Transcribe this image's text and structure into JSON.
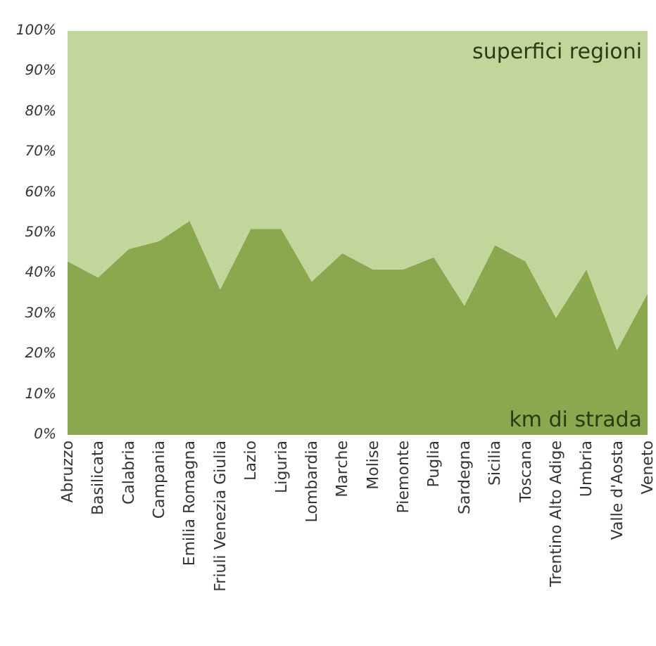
{
  "chart_data": {
    "type": "area",
    "stacked": true,
    "categories": [
      "Abruzzo",
      "Basilicata",
      "Calabria",
      "Campania",
      "Emilia Romagna",
      "Friuli Venezia Giulia",
      "Lazio",
      "Liguria",
      "Lombardia",
      "Marche",
      "Molise",
      "Piemonte",
      "Puglia",
      "Sardegna",
      "Sicilia",
      "Toscana",
      "Trentino Alto Adige",
      "Umbria",
      "Valle d'Aosta",
      "Veneto"
    ],
    "series": [
      {
        "name": "km di strada",
        "color": "#8aa84e",
        "values": [
          43,
          39,
          46,
          48,
          53,
          36,
          51,
          51,
          38,
          45,
          41,
          41,
          44,
          32,
          47,
          43,
          29,
          41,
          21,
          35
        ]
      },
      {
        "name": "superfici regioni",
        "color": "#c2d59b",
        "values": [
          57,
          61,
          54,
          52,
          47,
          64,
          49,
          49,
          62,
          55,
          59,
          59,
          56,
          68,
          53,
          57,
          71,
          59,
          79,
          65
        ]
      }
    ],
    "ylim": [
      0,
      100
    ],
    "yticks": [
      {
        "value": 0,
        "label": "0%"
      },
      {
        "value": 10,
        "label": "10%"
      },
      {
        "value": 20,
        "label": "20%"
      },
      {
        "value": 30,
        "label": "30%"
      },
      {
        "value": 40,
        "label": "40%"
      },
      {
        "value": 50,
        "label": "50%"
      },
      {
        "value": 60,
        "label": "60%"
      },
      {
        "value": 70,
        "label": "70%"
      },
      {
        "value": 80,
        "label": "80%"
      },
      {
        "value": 90,
        "label": "90%"
      },
      {
        "value": 100,
        "label": "100%"
      }
    ],
    "grid": false,
    "legend": false,
    "marker": "none"
  }
}
